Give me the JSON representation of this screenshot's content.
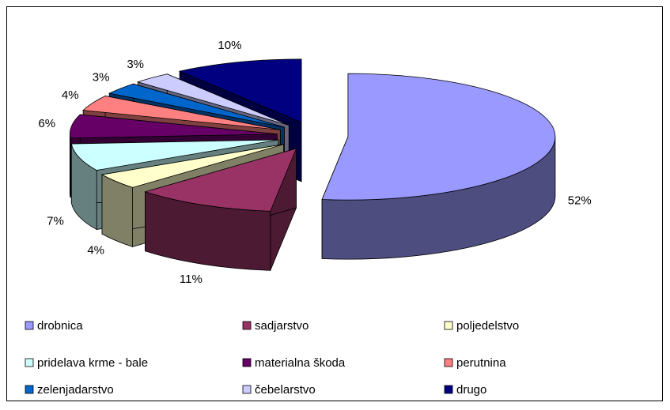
{
  "chart_data": {
    "type": "pie3d",
    "categories": [
      "drobnica",
      "sadjarstvo",
      "poljedelstvo",
      "pridelava krme - bale",
      "materialna škoda",
      "perutnina",
      "zelenjadarstvo",
      "čebelarstvo",
      "drugo"
    ],
    "values": [
      52,
      11,
      4,
      7,
      6,
      4,
      3,
      3,
      10
    ],
    "value_labels": [
      "52%",
      "11%",
      "4%",
      "7%",
      "6%",
      "4%",
      "3%",
      "3%",
      "10%"
    ],
    "colors": [
      "#9999ff",
      "#993366",
      "#ffffcc",
      "#ccffff",
      "#660066",
      "#ff8080",
      "#0066cc",
      "#ccccff",
      "#000080"
    ]
  }
}
